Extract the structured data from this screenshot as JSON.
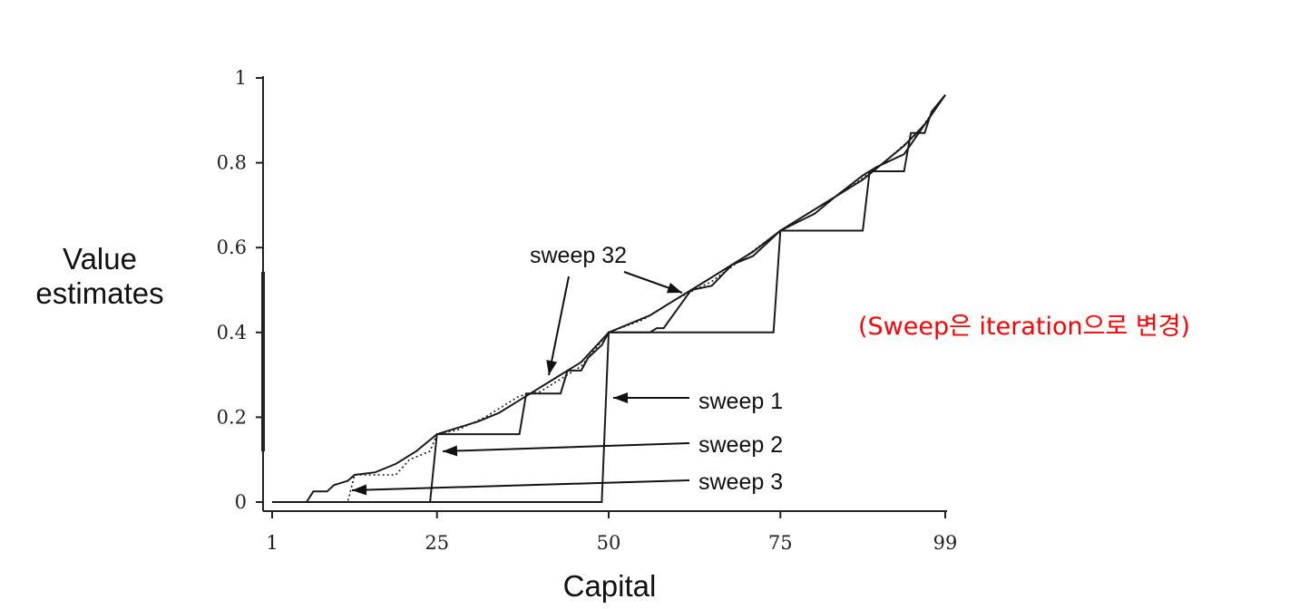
{
  "note": "(Sweep은 iteration으로 변경)",
  "chart_data": {
    "type": "line",
    "xlabel": "Capital",
    "ylabel_lines": [
      "Value",
      "estimates"
    ],
    "xlim": [
      1,
      99
    ],
    "ylim": [
      0,
      1
    ],
    "x_ticks": [
      1,
      25,
      50,
      75,
      99
    ],
    "y_ticks": [
      0,
      0.2,
      0.4,
      0.6,
      0.8,
      1
    ],
    "y_tick_labels": [
      "0",
      "0.2",
      "0.4",
      "0.6",
      "0.8",
      "1"
    ],
    "series": [
      {
        "name": "sweep 1",
        "style": "solid",
        "points": [
          [
            1,
            0
          ],
          [
            49,
            0
          ],
          [
            50,
            0.4
          ],
          [
            74,
            0.4
          ],
          [
            75,
            0.64
          ],
          [
            87,
            0.64
          ],
          [
            88,
            0.78
          ],
          [
            93,
            0.78
          ],
          [
            94,
            0.87
          ],
          [
            96,
            0.87
          ],
          [
            97,
            0.92
          ],
          [
            99,
            0.96
          ]
        ]
      },
      {
        "name": "sweep 2",
        "style": "solid",
        "points": [
          [
            1,
            0
          ],
          [
            24,
            0
          ],
          [
            25,
            0.16
          ],
          [
            37,
            0.16
          ],
          [
            38,
            0.256
          ],
          [
            43,
            0.256
          ],
          [
            44,
            0.31
          ],
          [
            46,
            0.31
          ],
          [
            47,
            0.34
          ],
          [
            49,
            0.37
          ],
          [
            50,
            0.4
          ],
          [
            56,
            0.4
          ],
          [
            57,
            0.41
          ],
          [
            58,
            0.41
          ],
          [
            62,
            0.5
          ],
          [
            65,
            0.51
          ],
          [
            68,
            0.56
          ],
          [
            71,
            0.58
          ],
          [
            75,
            0.64
          ],
          [
            80,
            0.68
          ],
          [
            83,
            0.72
          ],
          [
            87,
            0.77
          ],
          [
            89,
            0.79
          ],
          [
            93,
            0.82
          ],
          [
            96,
            0.89
          ],
          [
            99,
            0.96
          ]
        ]
      },
      {
        "name": "sweep 3",
        "style": "dotted",
        "points": [
          [
            1,
            0
          ],
          [
            12,
            0
          ],
          [
            13,
            0.064
          ],
          [
            19,
            0.064
          ],
          [
            21,
            0.1
          ],
          [
            24,
            0.12
          ],
          [
            25,
            0.16
          ],
          [
            28,
            0.17
          ],
          [
            32,
            0.2
          ],
          [
            37,
            0.25
          ],
          [
            40,
            0.26
          ],
          [
            43,
            0.29
          ],
          [
            46,
            0.32
          ],
          [
            50,
            0.4
          ],
          [
            55,
            0.43
          ],
          [
            60,
            0.48
          ],
          [
            65,
            0.52
          ],
          [
            70,
            0.58
          ],
          [
            75,
            0.64
          ],
          [
            80,
            0.69
          ],
          [
            85,
            0.74
          ],
          [
            90,
            0.8
          ],
          [
            95,
            0.87
          ],
          [
            99,
            0.96
          ]
        ]
      },
      {
        "name": "sweep 32",
        "style": "solid",
        "points": [
          [
            1,
            0
          ],
          [
            6,
            0
          ],
          [
            7,
            0.025
          ],
          [
            9,
            0.025
          ],
          [
            10,
            0.04
          ],
          [
            12,
            0.05
          ],
          [
            13,
            0.064
          ],
          [
            16,
            0.07
          ],
          [
            19,
            0.09
          ],
          [
            22,
            0.12
          ],
          [
            25,
            0.16
          ],
          [
            28,
            0.175
          ],
          [
            31,
            0.19
          ],
          [
            34,
            0.21
          ],
          [
            37,
            0.24
          ],
          [
            40,
            0.27
          ],
          [
            43,
            0.3
          ],
          [
            46,
            0.33
          ],
          [
            50,
            0.4
          ],
          [
            53,
            0.42
          ],
          [
            56,
            0.44
          ],
          [
            59,
            0.47
          ],
          [
            62,
            0.5
          ],
          [
            65,
            0.53
          ],
          [
            68,
            0.56
          ],
          [
            71,
            0.59
          ],
          [
            75,
            0.64
          ],
          [
            78,
            0.67
          ],
          [
            81,
            0.7
          ],
          [
            84,
            0.73
          ],
          [
            87,
            0.76
          ],
          [
            90,
            0.8
          ],
          [
            93,
            0.84
          ],
          [
            96,
            0.89
          ],
          [
            99,
            0.96
          ]
        ]
      }
    ],
    "annotations": [
      {
        "text": "sweep 32"
      },
      {
        "text": "sweep 1"
      },
      {
        "text": "sweep 2"
      },
      {
        "text": "sweep 3"
      }
    ]
  }
}
